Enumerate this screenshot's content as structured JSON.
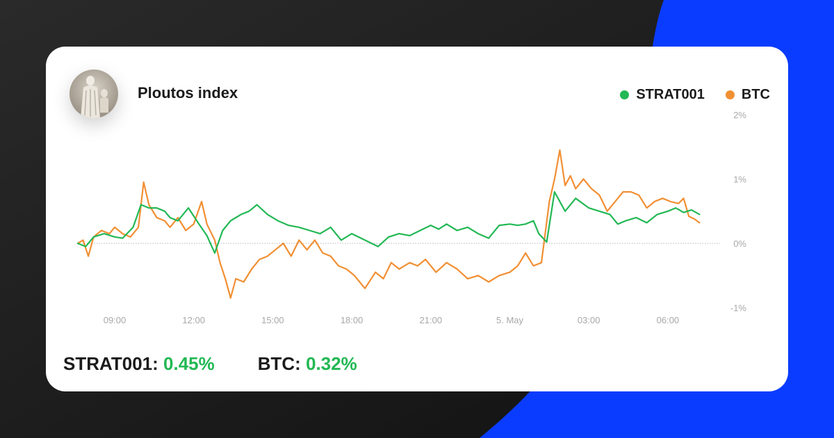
{
  "card": {
    "title": "Ploutos index",
    "avatar_icon": "statue-avatar-icon"
  },
  "colors": {
    "strat": "#22b854",
    "btc": "#f18f33",
    "background": "#151515",
    "accent": "#0a3cff"
  },
  "legend": [
    {
      "name": "STRAT001",
      "color": "#22b854"
    },
    {
      "name": "BTC",
      "color": "#f18f33"
    }
  ],
  "stats": [
    {
      "name": "STRAT001:",
      "value": "0.45%"
    },
    {
      "name": "BTC:",
      "value": "0.32%"
    }
  ],
  "chart_data": {
    "type": "line",
    "x_tick_labels": [
      "09:00",
      "12:00",
      "15:00",
      "18:00",
      "21:00",
      "5. May",
      "03:00",
      "06:00"
    ],
    "y_tick_labels": [
      "2%",
      "1%",
      "0%",
      "-1%"
    ],
    "y_ticks": [
      2,
      1,
      0,
      -1
    ],
    "ylim": [
      -1,
      2
    ],
    "y_axis_position": "right",
    "x_range_hours": [
      7.5,
      31.5
    ],
    "grid": false,
    "zero_line": true,
    "legend_position": "top-right",
    "series": [
      {
        "name": "STRAT001",
        "color": "#22b854",
        "x": [
          7.6,
          7.9,
          8.2,
          8.6,
          9.0,
          9.3,
          9.7,
          10.0,
          10.3,
          10.6,
          10.9,
          11.1,
          11.4,
          11.8,
          12.2,
          12.5,
          12.8,
          13.1,
          13.4,
          13.6,
          13.8,
          14.1,
          14.4,
          14.8,
          15.2,
          15.6,
          16.0,
          16.4,
          16.8,
          17.2,
          17.6,
          18.0,
          18.5,
          19.0,
          19.4,
          19.8,
          20.2,
          20.6,
          21.0,
          21.3,
          21.6,
          22.0,
          22.4,
          22.8,
          23.2,
          23.6,
          24.0,
          24.3,
          24.6,
          24.9,
          25.1,
          25.4,
          25.7,
          26.1,
          26.5,
          27.0,
          27.4,
          27.8,
          28.1,
          28.4,
          28.8,
          29.2,
          29.6,
          30.0,
          30.3,
          30.6,
          30.9,
          31.2
        ],
        "y": [
          0.0,
          -0.05,
          0.1,
          0.15,
          0.1,
          0.08,
          0.25,
          0.6,
          0.55,
          0.55,
          0.5,
          0.4,
          0.35,
          0.55,
          0.3,
          0.12,
          -0.15,
          0.2,
          0.35,
          0.4,
          0.45,
          0.5,
          0.6,
          0.45,
          0.35,
          0.28,
          0.25,
          0.2,
          0.15,
          0.25,
          0.05,
          0.15,
          0.05,
          -0.05,
          0.1,
          0.15,
          0.12,
          0.2,
          0.28,
          0.22,
          0.3,
          0.2,
          0.25,
          0.15,
          0.08,
          0.28,
          0.3,
          0.28,
          0.3,
          0.35,
          0.15,
          0.02,
          0.8,
          0.5,
          0.7,
          0.55,
          0.5,
          0.45,
          0.3,
          0.35,
          0.4,
          0.32,
          0.45,
          0.5,
          0.55,
          0.48,
          0.52,
          0.45
        ]
      },
      {
        "name": "BTC",
        "color": "#f18f33",
        "x": [
          7.6,
          7.8,
          8.0,
          8.2,
          8.5,
          8.8,
          9.0,
          9.3,
          9.6,
          9.9,
          10.1,
          10.3,
          10.6,
          10.9,
          11.1,
          11.4,
          11.7,
          12.0,
          12.3,
          12.5,
          12.8,
          13.0,
          13.2,
          13.4,
          13.6,
          13.9,
          14.2,
          14.5,
          14.8,
          15.1,
          15.4,
          15.7,
          16.0,
          16.3,
          16.6,
          16.9,
          17.2,
          17.5,
          17.8,
          18.1,
          18.5,
          18.9,
          19.2,
          19.5,
          19.8,
          20.2,
          20.5,
          20.8,
          21.2,
          21.6,
          22.0,
          22.4,
          22.8,
          23.2,
          23.6,
          24.0,
          24.3,
          24.6,
          24.9,
          25.2,
          25.5,
          25.7,
          25.9,
          26.1,
          26.3,
          26.5,
          26.8,
          27.1,
          27.4,
          27.7,
          28.0,
          28.3,
          28.6,
          28.9,
          29.2,
          29.5,
          29.8,
          30.1,
          30.4,
          30.6,
          30.8,
          31.0,
          31.2
        ],
        "y": [
          0.0,
          0.05,
          -0.2,
          0.1,
          0.2,
          0.15,
          0.25,
          0.15,
          0.1,
          0.25,
          0.95,
          0.6,
          0.4,
          0.35,
          0.25,
          0.4,
          0.2,
          0.3,
          0.65,
          0.3,
          0.05,
          -0.3,
          -0.55,
          -0.85,
          -0.55,
          -0.6,
          -0.4,
          -0.25,
          -0.2,
          -0.1,
          0.0,
          -0.2,
          0.05,
          -0.1,
          0.05,
          -0.15,
          -0.2,
          -0.35,
          -0.4,
          -0.5,
          -0.7,
          -0.45,
          -0.55,
          -0.3,
          -0.4,
          -0.3,
          -0.35,
          -0.25,
          -0.45,
          -0.3,
          -0.4,
          -0.55,
          -0.5,
          -0.6,
          -0.5,
          -0.45,
          -0.35,
          -0.15,
          -0.35,
          -0.3,
          0.65,
          1.0,
          1.45,
          0.9,
          1.05,
          0.85,
          1.0,
          0.85,
          0.75,
          0.5,
          0.65,
          0.8,
          0.8,
          0.75,
          0.55,
          0.65,
          0.7,
          0.65,
          0.62,
          0.7,
          0.42,
          0.38,
          0.32
        ]
      }
    ]
  }
}
